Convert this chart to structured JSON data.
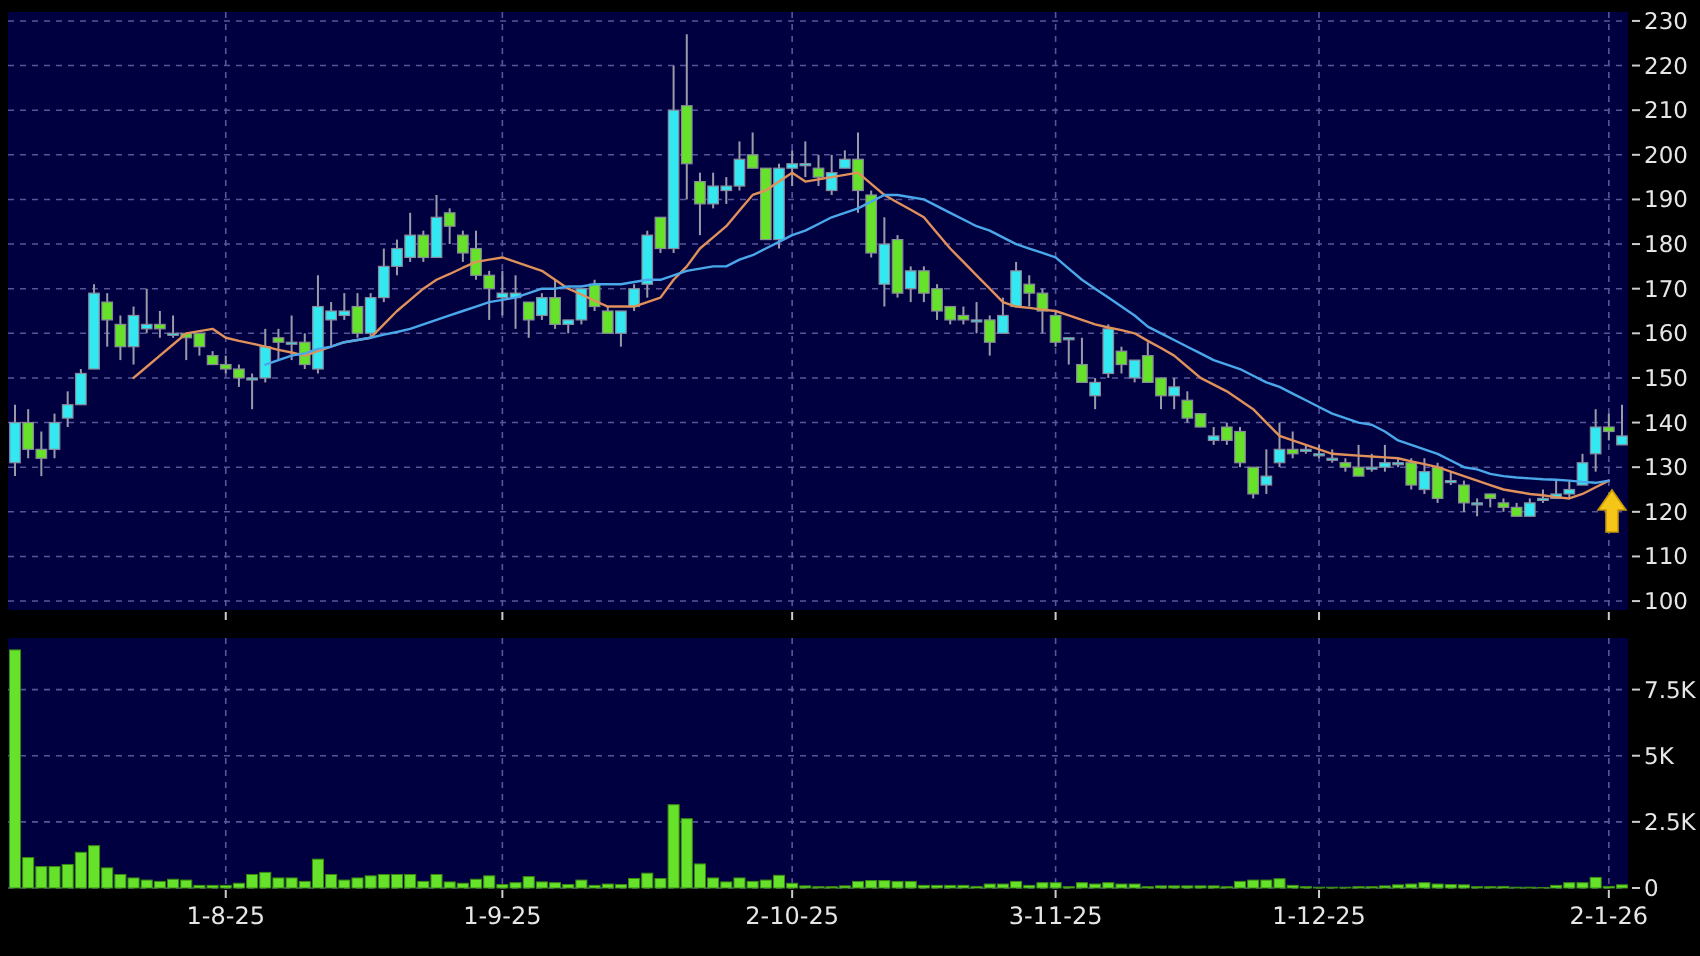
{
  "chart_data": [
    {
      "type": "candlestick",
      "tick_labels": "y",
      "grid": true,
      "categories": [
        null,
        null,
        null,
        null,
        null,
        null,
        null,
        null,
        null,
        null,
        null,
        null,
        null,
        null,
        null,
        null,
        null,
        null,
        null,
        null,
        null,
        null,
        null,
        null,
        null,
        null,
        null,
        null,
        null,
        null,
        null,
        null,
        null,
        null,
        null,
        null,
        null,
        null,
        null,
        null,
        null,
        null,
        null,
        null,
        null,
        null,
        null,
        null,
        null,
        null,
        null,
        null,
        null,
        null,
        null,
        null,
        null,
        null,
        null,
        null,
        null,
        null,
        null,
        null,
        null,
        null,
        null,
        null,
        null,
        null,
        null,
        null,
        null,
        null,
        null,
        null,
        null,
        null,
        null,
        null,
        null,
        null,
        null,
        null,
        null,
        null,
        null,
        null,
        null,
        null,
        null,
        null,
        null,
        null,
        null,
        null,
        null,
        null,
        null,
        null,
        null,
        null,
        null,
        null,
        null,
        null,
        null,
        null,
        null,
        null,
        null,
        null,
        null,
        null,
        null,
        null,
        null,
        null,
        null,
        null,
        null,
        null,
        null
      ],
      "ohlc": [
        [
          131,
          144,
          128,
          140
        ],
        [
          140,
          143,
          132,
          134
        ],
        [
          134,
          138,
          128,
          132
        ],
        [
          134,
          142,
          132,
          140
        ],
        [
          141,
          147,
          139,
          144
        ],
        [
          144,
          152,
          144,
          151
        ],
        [
          152,
          171,
          152,
          169
        ],
        [
          167,
          169,
          157,
          163
        ],
        [
          162,
          164,
          154,
          157
        ],
        [
          157,
          166,
          153,
          164
        ],
        [
          161,
          170,
          160,
          162
        ],
        [
          162,
          165,
          159,
          161
        ],
        [
          160,
          164,
          159,
          160
        ],
        [
          160,
          160,
          154,
          159
        ],
        [
          160,
          160,
          155,
          157
        ],
        [
          155,
          156,
          153,
          153
        ],
        [
          153,
          155,
          151,
          152
        ],
        [
          152,
          153,
          148,
          150
        ],
        [
          150,
          151,
          143,
          150
        ],
        [
          150,
          161,
          149,
          157
        ],
        [
          159,
          161,
          154,
          158
        ],
        [
          158,
          164,
          154,
          158
        ],
        [
          158,
          160,
          152,
          153
        ],
        [
          152,
          173,
          151,
          166
        ],
        [
          163,
          167,
          157,
          165
        ],
        [
          164,
          169,
          163,
          165
        ],
        [
          166,
          169,
          159,
          160
        ],
        [
          160,
          169,
          159,
          168
        ],
        [
          168,
          179,
          167,
          175
        ],
        [
          175,
          181,
          173,
          179
        ],
        [
          177,
          187,
          176,
          182
        ],
        [
          182,
          183,
          176,
          177
        ],
        [
          177,
          191,
          177,
          186
        ],
        [
          187,
          188,
          180,
          184
        ],
        [
          182,
          183,
          176,
          178
        ],
        [
          179,
          183,
          172,
          173
        ],
        [
          173,
          174,
          163,
          170
        ],
        [
          168,
          174,
          164,
          169
        ],
        [
          168,
          173,
          161,
          169
        ],
        [
          167,
          167,
          159,
          163
        ],
        [
          164,
          169,
          163,
          168
        ],
        [
          168,
          172,
          161,
          162
        ],
        [
          162,
          163,
          160,
          163
        ],
        [
          163,
          170,
          162,
          170
        ],
        [
          171,
          172,
          165,
          166
        ],
        [
          165,
          166,
          160,
          160
        ],
        [
          160,
          165,
          157,
          165
        ],
        [
          166,
          171,
          165,
          170
        ],
        [
          171,
          183,
          168,
          182
        ],
        [
          186,
          186,
          178,
          179
        ],
        [
          179,
          220,
          178,
          210
        ],
        [
          211,
          227,
          190,
          198
        ],
        [
          194,
          196,
          182,
          189
        ],
        [
          189,
          196,
          188,
          193
        ],
        [
          192,
          195,
          189,
          193
        ],
        [
          193,
          203,
          192,
          199
        ],
        [
          200,
          205,
          197,
          197
        ],
        [
          197,
          197,
          181,
          181
        ],
        [
          181,
          198,
          179,
          197
        ],
        [
          197,
          201,
          193,
          198
        ],
        [
          198,
          203,
          195,
          198
        ],
        [
          197,
          200,
          193,
          195
        ],
        [
          192,
          200,
          191,
          196
        ],
        [
          197,
          201,
          197,
          199
        ],
        [
          199,
          205,
          187,
          192
        ],
        [
          191,
          192,
          177,
          178
        ],
        [
          171,
          186,
          166,
          180
        ],
        [
          181,
          182,
          168,
          169
        ],
        [
          170,
          175,
          167,
          174
        ],
        [
          174,
          175,
          167,
          169
        ],
        [
          170,
          171,
          163,
          165
        ],
        [
          166,
          166,
          162,
          163
        ],
        [
          164,
          166,
          162,
          163
        ],
        [
          163,
          167,
          160,
          163
        ],
        [
          163,
          164,
          155,
          158
        ],
        [
          160,
          168,
          160,
          164
        ],
        [
          166,
          176,
          166,
          174
        ],
        [
          171,
          173,
          166,
          169
        ],
        [
          169,
          170,
          160,
          165
        ],
        [
          164,
          165,
          157,
          158
        ],
        [
          159,
          159,
          153,
          159
        ],
        [
          153,
          159,
          149,
          149
        ],
        [
          146,
          150,
          143,
          149
        ],
        [
          151,
          162,
          150,
          161
        ],
        [
          156,
          157,
          151,
          153
        ],
        [
          150,
          154,
          149,
          154
        ],
        [
          155,
          158,
          149,
          149
        ],
        [
          150,
          150,
          143,
          146
        ],
        [
          146,
          150,
          143,
          148
        ],
        [
          145,
          147,
          140,
          141
        ],
        [
          142,
          142,
          139,
          139
        ],
        [
          136,
          139,
          135,
          137
        ],
        [
          139,
          140,
          135,
          136
        ],
        [
          138,
          139,
          130,
          131
        ],
        [
          130,
          130,
          123,
          124
        ],
        [
          126,
          134,
          124,
          128
        ],
        [
          131,
          140,
          130,
          134
        ],
        [
          134,
          138,
          132,
          133
        ],
        [
          134,
          135,
          133,
          134
        ],
        [
          133,
          135,
          132,
          133
        ],
        [
          132,
          134,
          131,
          132
        ],
        [
          131,
          132,
          129,
          130
        ],
        [
          130,
          135,
          128,
          128
        ],
        [
          130,
          133,
          129,
          130
        ],
        [
          130,
          135,
          129,
          131
        ],
        [
          131,
          132,
          130,
          131
        ],
        [
          131,
          132,
          125,
          126
        ],
        [
          125,
          132,
          124,
          129
        ],
        [
          130,
          131,
          122,
          123
        ],
        [
          127,
          129,
          126,
          127
        ],
        [
          126,
          127,
          120,
          122
        ],
        [
          122,
          123,
          119,
          122
        ],
        [
          124,
          124,
          121,
          123
        ],
        [
          122,
          123,
          120,
          121
        ],
        [
          121,
          122,
          119,
          119
        ],
        [
          119,
          123,
          119,
          122
        ],
        [
          123,
          125,
          122,
          123
        ],
        [
          123,
          127,
          123,
          124
        ],
        [
          124,
          127,
          123,
          125
        ],
        [
          126,
          133,
          126,
          131
        ],
        [
          133,
          143,
          129,
          139
        ],
        [
          139,
          142,
          136,
          138
        ],
        [
          135,
          144,
          135,
          137
        ]
      ],
      "colors": [
        "#33e8f0",
        "#66e22a",
        "#66e22a",
        "#33e8f0",
        "#33e8f0",
        "#33e8f0",
        "#33e8f0",
        "#66e22a",
        "#66e22a",
        "#33e8f0",
        "#33e8f0",
        "#66e22a",
        "#33e8f0",
        "#66e22a",
        "#66e22a",
        "#66e22a",
        "#66e22a",
        "#66e22a",
        "#33e8f0",
        "#33e8f0",
        "#66e22a",
        "#33e8f0",
        "#66e22a",
        "#33e8f0",
        "#33e8f0",
        "#33e8f0",
        "#66e22a",
        "#33e8f0",
        "#33e8f0",
        "#33e8f0",
        "#33e8f0",
        "#66e22a",
        "#33e8f0",
        "#66e22a",
        "#66e22a",
        "#66e22a",
        "#66e22a",
        "#33e8f0",
        "#33e8f0",
        "#66e22a",
        "#33e8f0",
        "#66e22a",
        "#33e8f0",
        "#33e8f0",
        "#66e22a",
        "#66e22a",
        "#33e8f0",
        "#33e8f0",
        "#33e8f0",
        "#66e22a",
        "#33e8f0",
        "#66e22a",
        "#66e22a",
        "#33e8f0",
        "#33e8f0",
        "#33e8f0",
        "#66e22a",
        "#66e22a",
        "#33e8f0",
        "#33e8f0",
        "#33e8f0",
        "#66e22a",
        "#33e8f0",
        "#33e8f0",
        "#66e22a",
        "#66e22a",
        "#33e8f0",
        "#66e22a",
        "#33e8f0",
        "#66e22a",
        "#66e22a",
        "#66e22a",
        "#66e22a",
        "#33e8f0",
        "#66e22a",
        "#33e8f0",
        "#33e8f0",
        "#66e22a",
        "#66e22a",
        "#66e22a",
        "#33e8f0",
        "#66e22a",
        "#33e8f0",
        "#33e8f0",
        "#66e22a",
        "#33e8f0",
        "#66e22a",
        "#66e22a",
        "#33e8f0",
        "#66e22a",
        "#66e22a",
        "#33e8f0",
        "#66e22a",
        "#66e22a",
        "#66e22a",
        "#33e8f0",
        "#33e8f0",
        "#66e22a",
        "#33e8f0",
        "#33e8f0",
        "#33e8f0",
        "#66e22a",
        "#66e22a",
        "#33e8f0",
        "#33e8f0",
        "#33e8f0",
        "#66e22a",
        "#33e8f0",
        "#66e22a",
        "#33e8f0",
        "#66e22a",
        "#33e8f0",
        "#66e22a",
        "#66e22a",
        "#66e22a",
        "#33e8f0",
        "#33e8f0",
        "#33e8f0",
        "#33e8f0",
        "#33e8f0",
        "#33e8f0",
        "#66e22a",
        "#33e8f0"
      ],
      "series": [
        {
          "type": "line",
          "color": "#e0905a",
          "values": [
            null,
            null,
            null,
            null,
            null,
            null,
            null,
            null,
            null,
            150,
            152.5,
            155,
            157.5,
            160,
            160.5,
            161,
            159,
            158.3,
            157.7,
            157,
            156.3,
            155.7,
            155,
            156,
            157,
            158,
            158.5,
            159,
            162,
            165,
            167.5,
            170,
            172,
            173.3,
            174.7,
            176,
            176.5,
            177,
            176,
            175,
            174,
            172,
            170,
            168.7,
            167.3,
            166,
            166,
            166,
            167,
            168,
            172,
            175,
            179,
            181.5,
            184,
            187.5,
            191,
            192,
            194,
            196,
            194,
            194.5,
            195,
            195.5,
            196,
            193.5,
            191,
            189.3,
            187.7,
            186,
            182.5,
            179,
            176,
            173,
            170,
            167,
            166,
            165.7,
            165.3,
            165,
            164,
            163,
            162,
            161.3,
            160.7,
            160,
            158.3,
            156.7,
            155,
            152.5,
            150,
            148.5,
            147,
            145,
            143,
            140,
            137,
            136,
            135,
            134,
            133,
            132.8,
            132.6,
            132.4,
            132.2,
            132,
            131.3,
            130.7,
            130,
            129,
            128,
            127,
            126,
            125,
            124.5,
            124,
            123.7,
            123.3,
            123,
            124,
            125.5,
            127,
            null
          ]
        },
        {
          "type": "line",
          "color": "#4aa8ea",
          "values": [
            null,
            null,
            null,
            null,
            null,
            null,
            null,
            null,
            null,
            null,
            null,
            null,
            null,
            null,
            null,
            null,
            null,
            null,
            null,
            153,
            154,
            155,
            155.5,
            156.5,
            157,
            158,
            158.5,
            159,
            159.7,
            160.3,
            161,
            162,
            163,
            164,
            165,
            166,
            167,
            167.5,
            168,
            169,
            170,
            170,
            170.5,
            170.5,
            171,
            171,
            171,
            171.5,
            172,
            172,
            173,
            174,
            174.5,
            175,
            175,
            176.5,
            177.5,
            179,
            180.5,
            182,
            183,
            184.5,
            186,
            187,
            188,
            189.5,
            191,
            191,
            190.5,
            190,
            188.5,
            187,
            185.5,
            184,
            183,
            181.5,
            180,
            179,
            178,
            177,
            174.5,
            172,
            170,
            168,
            166,
            164,
            161.5,
            160,
            158.5,
            157,
            155.5,
            154,
            153,
            152,
            150.5,
            149,
            148,
            146.5,
            145,
            143.5,
            142,
            141,
            140,
            139.5,
            138,
            136,
            135,
            134,
            133,
            131.5,
            130,
            129.5,
            128.5,
            128,
            127.7,
            127.5,
            127.3,
            127.2,
            127,
            126.7,
            126.5,
            127,
            null
          ]
        }
      ],
      "ylim": [
        98,
        232
      ],
      "yticks": [
        100,
        110,
        120,
        130,
        140,
        150,
        160,
        170,
        180,
        190,
        200,
        210,
        220,
        230
      ]
    },
    {
      "type": "bar",
      "grid": true,
      "color": "#66e22a",
      "categories": [
        null,
        null,
        null,
        null,
        null,
        null,
        null,
        null,
        null,
        null,
        null,
        null,
        null,
        null,
        null,
        null,
        "1-8-25",
        null,
        null,
        null,
        null,
        null,
        null,
        null,
        null,
        null,
        null,
        null,
        null,
        null,
        null,
        null,
        null,
        null,
        null,
        null,
        null,
        "1-9-25",
        null,
        null,
        null,
        null,
        null,
        null,
        null,
        null,
        null,
        null,
        null,
        null,
        null,
        null,
        null,
        null,
        null,
        null,
        null,
        null,
        null,
        "2-10-25",
        null,
        null,
        null,
        null,
        null,
        null,
        null,
        null,
        null,
        null,
        null,
        null,
        null,
        null,
        null,
        null,
        null,
        null,
        null,
        "3-11-25",
        null,
        null,
        null,
        null,
        null,
        null,
        null,
        null,
        null,
        null,
        null,
        null,
        null,
        null,
        null,
        null,
        null,
        null,
        null,
        "1-12-25",
        null,
        null,
        null,
        null,
        null,
        null,
        null,
        null,
        null,
        null,
        null,
        null,
        null,
        null,
        null,
        null,
        null,
        null,
        null,
        null,
        null,
        "2-1-26",
        null
      ],
      "values": [
        9000,
        1150,
        810,
        810,
        890,
        1350,
        1600,
        760,
        510,
        380,
        300,
        250,
        330,
        300,
        100,
        100,
        100,
        180,
        510,
        590,
        380,
        380,
        250,
        1090,
        510,
        300,
        380,
        460,
        510,
        510,
        510,
        250,
        510,
        230,
        180,
        330,
        460,
        130,
        200,
        430,
        230,
        200,
        130,
        300,
        100,
        150,
        130,
        360,
        560,
        360,
        3150,
        2620,
        910,
        380,
        230,
        380,
        250,
        300,
        480,
        180,
        80,
        50,
        50,
        80,
        250,
        280,
        280,
        250,
        250,
        100,
        100,
        100,
        100,
        60,
        150,
        150,
        250,
        100,
        200,
        200,
        50,
        200,
        150,
        200,
        150,
        150,
        50,
        80,
        80,
        80,
        80,
        80,
        50,
        250,
        300,
        300,
        350,
        100,
        50,
        30,
        30,
        30,
        50,
        50,
        80,
        120,
        150,
        200,
        150,
        130,
        120,
        50,
        50,
        60,
        30,
        30,
        20,
        100,
        200,
        200,
        400,
        60,
        120
      ],
      "ylim": [
        0,
        9450
      ],
      "yticks": [
        0,
        {
          "value": 2500,
          "label": "2.5K"
        },
        {
          "value": 5000,
          "label": "5K"
        },
        {
          "value": 7500,
          "label": "7.5K"
        }
      ]
    }
  ]
}
